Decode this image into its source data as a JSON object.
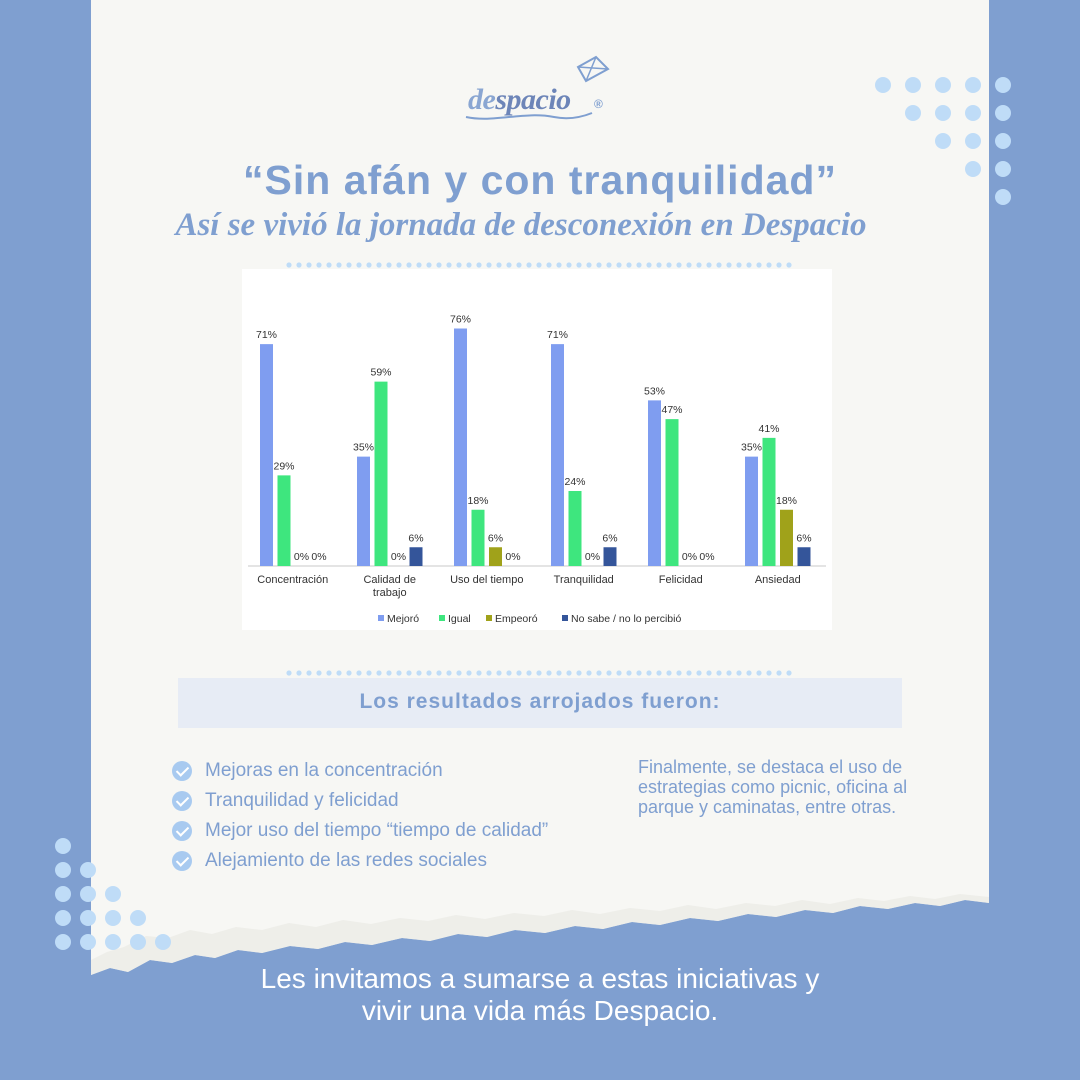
{
  "brand": {
    "logo_prefix": "de",
    "logo_main": "spacio",
    "registered": "®",
    "logo_icon": "kite-icon"
  },
  "title": "“Sin afán y con tranquilidad”",
  "subtitle": "Así se vivió la jornada de desconexión en Despacio",
  "colors": {
    "background": "#7f9fd0",
    "card": "#f7f7f4",
    "accent": "#7f9fd0",
    "dots": "#bfdcf7",
    "check": "#a8caf0"
  },
  "chart_data": {
    "type": "bar",
    "categories": [
      "Concentración",
      "Calidad de trabajo",
      "Uso del tiempo",
      "Tranquilidad",
      "Felicidad",
      "Ansiedad"
    ],
    "category_label_lines": [
      [
        "Concentración"
      ],
      [
        "Calidad de",
        "trabajo"
      ],
      [
        "Uso del tiempo"
      ],
      [
        "Tranquilidad"
      ],
      [
        "Felicidad"
      ],
      [
        "Ansiedad"
      ]
    ],
    "series": [
      {
        "name": "Mejoró",
        "color": "#7f9df0",
        "values": [
          71,
          35,
          76,
          71,
          53,
          35
        ],
        "labels": [
          "71%",
          "35%",
          "76%",
          "71%",
          "53%",
          "35%"
        ]
      },
      {
        "name": "Igual",
        "color": "#3ee67e",
        "values": [
          29,
          59,
          18,
          24,
          47,
          41
        ],
        "labels": [
          "29%",
          "59%",
          "18%",
          "24%",
          "47%",
          "41%"
        ]
      },
      {
        "name": "Empeoró",
        "color": "#a0a21a",
        "values": [
          0,
          0,
          6,
          0,
          0,
          18
        ],
        "labels": [
          "0%",
          "0%",
          "6%",
          "0%",
          "0%",
          "18%"
        ]
      },
      {
        "name": "No sabe / no lo percibió",
        "color": "#34559a",
        "values": [
          0,
          6,
          0,
          6,
          0,
          6
        ],
        "labels": [
          "0%",
          "6%",
          "0%",
          "6%",
          "0%",
          "6%"
        ]
      }
    ],
    "ylim": [
      0,
      80
    ],
    "grid": false,
    "legend_position": "bottom"
  },
  "results": {
    "title": "Los resultados arrojados fueron:",
    "items": [
      "Mejoras en la concentración",
      "Tranquilidad y felicidad",
      "Mejor uso del tiempo “tiempo de calidad”",
      "Alejamiento de las redes sociales"
    ],
    "icon": "check-circle-icon"
  },
  "note": "Finalmente, se destaca el uso de estrategias como picnic, oficina al parque y caminatas, entre otras.",
  "footer": {
    "line1": "Les invitamos a sumarse a estas iniciativas y",
    "line2": "vivir una vida más Despacio."
  }
}
